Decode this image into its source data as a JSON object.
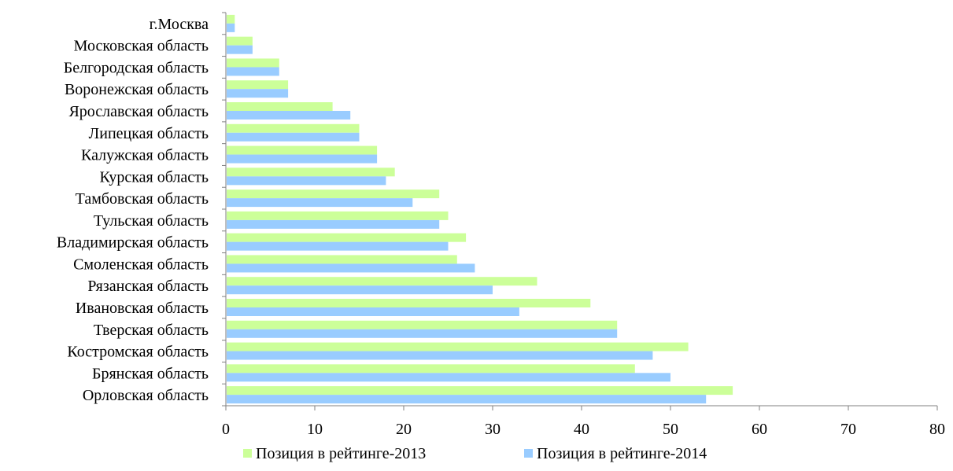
{
  "chart_data": {
    "type": "bar",
    "orientation": "horizontal",
    "title": "",
    "xlabel": "",
    "ylabel": "",
    "categories": [
      "г.Москва",
      "Московская область",
      "Белгородская область",
      "Воронежская область",
      "Ярославская область",
      "Липецкая область",
      "Калужская область",
      "Курская область",
      "Тамбовская область",
      "Тульская область",
      "Владимирская область",
      "Смоленская область",
      "Рязанская область",
      "Ивановская область",
      "Тверская область",
      "Костромская область",
      "Брянская область",
      "Орловская область"
    ],
    "series": [
      {
        "name": "Позиция в рейтинге-2013",
        "color": "#ccff99",
        "values": [
          1,
          3,
          6,
          7,
          12,
          15,
          17,
          19,
          24,
          25,
          27,
          26,
          35,
          41,
          44,
          52,
          46,
          57
        ]
      },
      {
        "name": "Позиция в рейтинге-2014",
        "color": "#99ccff",
        "values": [
          1,
          3,
          6,
          7,
          14,
          15,
          17,
          18,
          21,
          24,
          25,
          28,
          30,
          33,
          44,
          48,
          50,
          54
        ]
      }
    ],
    "xlim": [
      0,
      80
    ],
    "xticks": [
      0,
      10,
      20,
      30,
      40,
      50,
      60,
      70,
      80
    ],
    "grid": false,
    "legend_position": "bottom"
  }
}
